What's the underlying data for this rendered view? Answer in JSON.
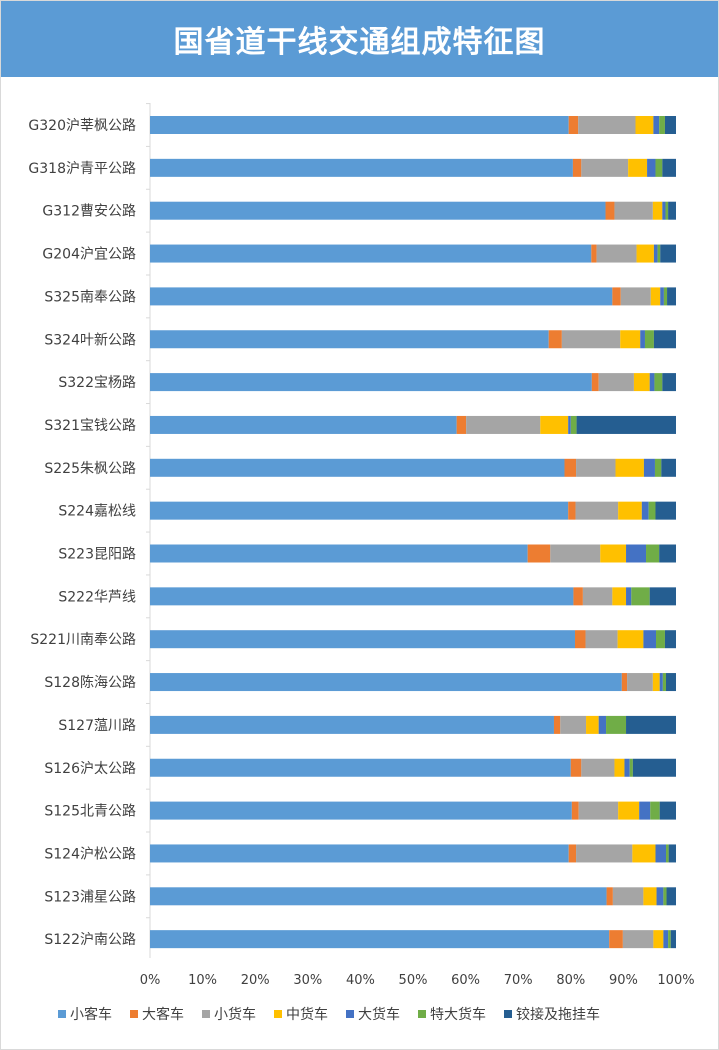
{
  "chart_data": {
    "type": "bar",
    "orientation": "horizontal",
    "stacked": "percent",
    "title": "国省道干线交通组成特征图",
    "xlim": [
      0,
      100
    ],
    "x_ticks": [
      "0%",
      "10%",
      "20%",
      "30%",
      "40%",
      "50%",
      "60%",
      "70%",
      "80%",
      "90%",
      "100%"
    ],
    "legend_position": "bottom",
    "grid": false,
    "categories": [
      "G320沪莘枫公路",
      "G318沪青平公路",
      "G312曹安公路",
      "G204沪宜公路",
      "S325南奉公路",
      "S324叶新公路",
      "S322宝杨路",
      "S321宝钱公路",
      "S225朱枫公路",
      "S224嘉松线",
      "S223昆阳路",
      "S222华芦线",
      "S221川南奉公路",
      "S128陈海公路",
      "S127蕰川路",
      "S126沪太公路",
      "S125北青公路",
      "S124沪松公路",
      "S123浦星公路",
      "S122沪南公路"
    ],
    "series": [
      {
        "name": "小客车",
        "color": "#5b9bd5",
        "values": [
          79.6,
          80.4,
          86.6,
          83.9,
          87.9,
          75.8,
          84.0,
          58.3,
          78.8,
          79.5,
          71.8,
          80.5,
          80.8,
          89.7,
          76.8,
          80.0,
          80.2,
          79.6,
          86.8,
          87.3
        ]
      },
      {
        "name": "大客车",
        "color": "#ed7d31",
        "values": [
          1.8,
          1.6,
          1.7,
          1.0,
          1.6,
          2.5,
          1.3,
          1.8,
          2.2,
          1.4,
          4.3,
          1.8,
          2.0,
          1.0,
          1.2,
          2.0,
          1.3,
          1.4,
          1.2,
          2.6
        ]
      },
      {
        "name": "小货车",
        "color": "#a5a5a5",
        "values": [
          10.9,
          8.9,
          7.3,
          7.6,
          5.7,
          11.1,
          6.7,
          14.1,
          7.5,
          8.1,
          9.5,
          5.6,
          6.1,
          4.9,
          4.9,
          6.3,
          7.5,
          10.7,
          5.8,
          5.8
        ]
      },
      {
        "name": "中货车",
        "color": "#ffc000",
        "values": [
          3.4,
          3.6,
          1.8,
          3.3,
          1.8,
          3.8,
          3.0,
          5.3,
          5.4,
          4.5,
          4.9,
          2.6,
          4.9,
          1.3,
          2.4,
          1.9,
          4.0,
          4.4,
          2.5,
          1.9
        ]
      },
      {
        "name": "大货车",
        "color": "#4472c4",
        "values": [
          1.1,
          1.6,
          0.6,
          0.7,
          0.7,
          0.9,
          0.9,
          0.5,
          2.1,
          1.3,
          3.8,
          1.0,
          2.4,
          0.6,
          1.4,
          1.0,
          2.1,
          2.0,
          1.3,
          0.9
        ]
      },
      {
        "name": "特大货车",
        "color": "#70ad47",
        "values": [
          1.1,
          1.3,
          0.5,
          0.5,
          0.6,
          1.7,
          1.5,
          1.1,
          1.2,
          1.3,
          2.5,
          3.5,
          1.7,
          0.6,
          3.8,
          0.6,
          1.8,
          0.5,
          0.6,
          0.5
        ]
      },
      {
        "name": "铰接及拖挂车",
        "color": "#255e91",
        "values": [
          2.1,
          2.6,
          1.5,
          3.0,
          1.7,
          4.2,
          2.6,
          18.9,
          2.8,
          3.9,
          3.2,
          5.0,
          2.1,
          1.9,
          9.5,
          8.2,
          3.1,
          1.4,
          1.8,
          1.0
        ]
      }
    ]
  }
}
